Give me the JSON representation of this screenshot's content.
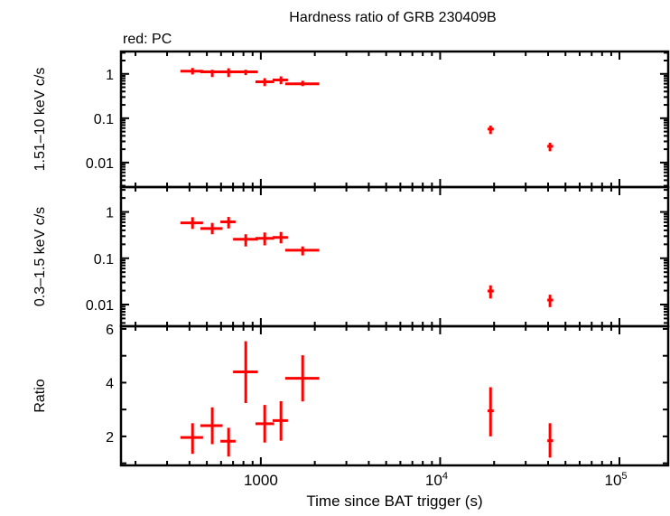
{
  "chart_data": {
    "type": "scatter",
    "title": "Hardness ratio of GRB 230409B",
    "subtitle": "red: PC",
    "xlabel": "Time since BAT trigger (s)",
    "x_scale": "log",
    "xlim": [
      166,
      187000
    ],
    "x_tick_labels": [
      {
        "value": 1000,
        "label": "1000"
      },
      {
        "value": 10000,
        "base": "10",
        "exp": "4"
      },
      {
        "value": 100000,
        "base": "10",
        "exp": "5"
      }
    ],
    "series_color": "#ff0000",
    "panels": [
      {
        "ylabel": "1.51–10 keV c/s",
        "y_scale": "log",
        "ylim": [
          0.0028,
          3.2
        ],
        "y_tick_labels": [
          {
            "value": 1,
            "label": "1"
          },
          {
            "value": 0.1,
            "label": "0.1"
          },
          {
            "value": 0.01,
            "label": "0.01"
          }
        ],
        "points": [
          {
            "x": 416,
            "xlo": 356,
            "xhi": 476,
            "y": 1.15,
            "ylo": 0.97,
            "yhi": 1.36
          },
          {
            "x": 536,
            "xlo": 460,
            "xhi": 612,
            "y": 1.11,
            "ylo": 0.85,
            "yhi": 1.24
          },
          {
            "x": 661,
            "xlo": 595,
            "xhi": 723,
            "y": 1.11,
            "ylo": 0.85,
            "yhi": 1.34
          },
          {
            "x": 824,
            "xlo": 700,
            "xhi": 962,
            "y": 1.11,
            "ylo": 0.94,
            "yhi": 1.24
          },
          {
            "x": 1051,
            "xlo": 933,
            "xhi": 1186,
            "y": 0.665,
            "ylo": 0.53,
            "yhi": 0.8
          },
          {
            "x": 1295,
            "xlo": 1163,
            "xhi": 1416,
            "y": 0.73,
            "ylo": 0.585,
            "yhi": 0.88
          },
          {
            "x": 1711,
            "xlo": 1368,
            "xhi": 2118,
            "y": 0.596,
            "ylo": 0.53,
            "yhi": 0.7
          },
          {
            "x": 19100,
            "xlo": 18400,
            "xhi": 19900,
            "y": 0.057,
            "ylo": 0.044,
            "yhi": 0.068
          },
          {
            "x": 41000,
            "xlo": 39600,
            "xhi": 42700,
            "y": 0.0233,
            "ylo": 0.018,
            "yhi": 0.028
          }
        ]
      },
      {
        "ylabel": "0.3–1.5 keV c/s",
        "y_scale": "log",
        "ylim": [
          0.0034,
          3.45
        ],
        "y_tick_labels": [
          {
            "value": 1,
            "label": "1"
          },
          {
            "value": 0.1,
            "label": "0.1"
          },
          {
            "value": 0.01,
            "label": "0.01"
          }
        ],
        "points": [
          {
            "x": 416,
            "xlo": 356,
            "xhi": 476,
            "y": 0.58,
            "ylo": 0.43,
            "yhi": 0.77
          },
          {
            "x": 536,
            "xlo": 460,
            "xhi": 612,
            "y": 0.44,
            "ylo": 0.33,
            "yhi": 0.58
          },
          {
            "x": 661,
            "xlo": 595,
            "xhi": 723,
            "y": 0.61,
            "ylo": 0.44,
            "yhi": 0.78
          },
          {
            "x": 824,
            "xlo": 700,
            "xhi": 962,
            "y": 0.257,
            "ylo": 0.18,
            "yhi": 0.33
          },
          {
            "x": 1051,
            "xlo": 933,
            "xhi": 1186,
            "y": 0.269,
            "ylo": 0.19,
            "yhi": 0.36
          },
          {
            "x": 1295,
            "xlo": 1163,
            "xhi": 1416,
            "y": 0.281,
            "ylo": 0.21,
            "yhi": 0.37
          },
          {
            "x": 1711,
            "xlo": 1368,
            "xhi": 2118,
            "y": 0.149,
            "ylo": 0.115,
            "yhi": 0.18
          },
          {
            "x": 19100,
            "xlo": 18400,
            "xhi": 19900,
            "y": 0.0196,
            "ylo": 0.0135,
            "yhi": 0.026
          },
          {
            "x": 41000,
            "xlo": 39600,
            "xhi": 42700,
            "y": 0.0125,
            "ylo": 0.0088,
            "yhi": 0.0163
          }
        ]
      },
      {
        "ylabel": "Ratio",
        "y_scale": "linear",
        "ylim": [
          0.92,
          6.1
        ],
        "y_tick_labels": [
          {
            "value": 6,
            "label": "6"
          },
          {
            "value": 4,
            "label": "4"
          },
          {
            "value": 2,
            "label": "2"
          }
        ],
        "points": [
          {
            "x": 416,
            "xlo": 356,
            "xhi": 476,
            "y": 1.96,
            "ylo": 1.35,
            "yhi": 2.49
          },
          {
            "x": 536,
            "xlo": 460,
            "xhi": 612,
            "y": 2.4,
            "ylo": 1.71,
            "yhi": 3.08
          },
          {
            "x": 661,
            "xlo": 595,
            "xhi": 723,
            "y": 1.82,
            "ylo": 1.25,
            "yhi": 2.32
          },
          {
            "x": 824,
            "xlo": 700,
            "xhi": 962,
            "y": 4.4,
            "ylo": 3.24,
            "yhi": 5.54
          },
          {
            "x": 1051,
            "xlo": 933,
            "xhi": 1186,
            "y": 2.47,
            "ylo": 1.77,
            "yhi": 3.17
          },
          {
            "x": 1295,
            "xlo": 1163,
            "xhi": 1416,
            "y": 2.59,
            "ylo": 1.84,
            "yhi": 3.31
          },
          {
            "x": 1711,
            "xlo": 1368,
            "xhi": 2118,
            "y": 4.16,
            "ylo": 3.3,
            "yhi": 5.02
          },
          {
            "x": 19100,
            "xlo": 18400,
            "xhi": 19900,
            "y": 2.95,
            "ylo": 2.0,
            "yhi": 3.83
          },
          {
            "x": 41000,
            "xlo": 39600,
            "xhi": 42700,
            "y": 1.84,
            "ylo": 1.21,
            "yhi": 2.49
          }
        ]
      }
    ]
  }
}
